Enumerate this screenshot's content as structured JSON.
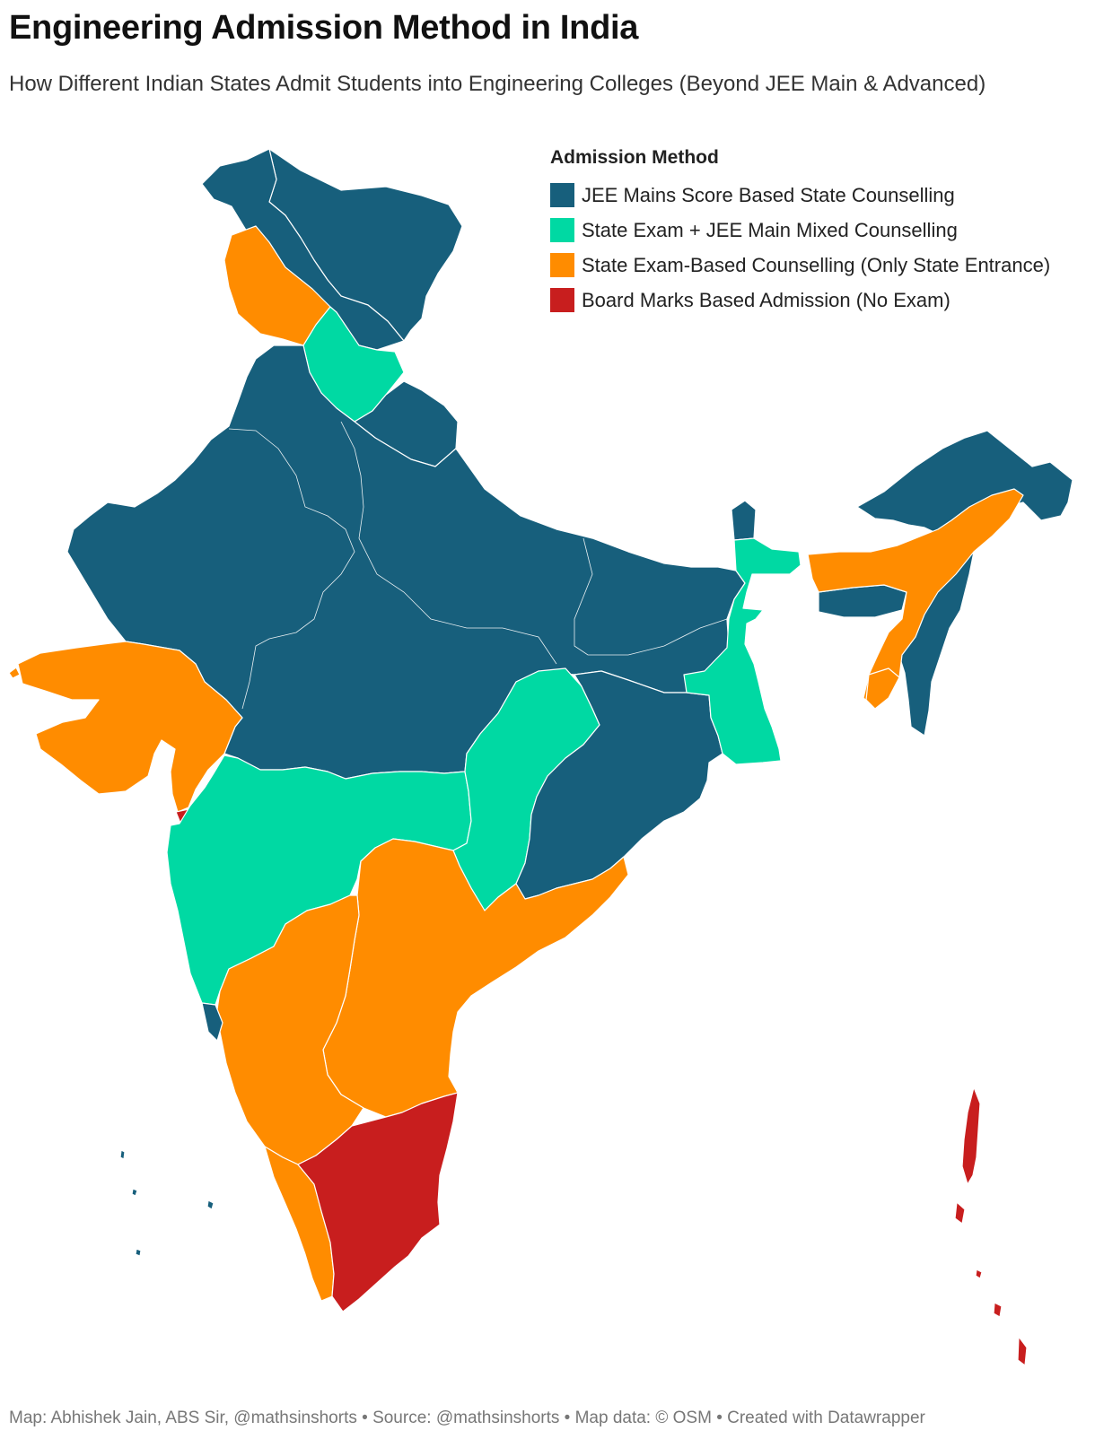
{
  "title": "Engineering Admission Method in India",
  "subtitle": "How Different Indian States Admit Students into Engineering Colleges (Beyond JEE Main & Advanced)",
  "legend": {
    "title": "Admission Method",
    "items": [
      {
        "label": "JEE Mains Score Based State Counselling",
        "color": "#175f7c"
      },
      {
        "label": "State Exam + JEE Main Mixed Counselling",
        "color": "#00d9a3"
      },
      {
        "label": "State Exam-Based Counselling (Only State Entrance)",
        "color": "#ff8c00"
      },
      {
        "label": "Board Marks Based Admission (No Exam)",
        "color": "#c81e1e"
      }
    ]
  },
  "map": {
    "border_color": "#ffffff",
    "colors": {
      "jee": "#175f7c",
      "mixed": "#00d9a3",
      "state": "#ff8c00",
      "board": "#c81e1e"
    }
  },
  "footer": "Map: Abhishek Jain, ABS Sir, @mathsinshorts • Source: @mathsinshorts • Map data: © OSM  • Created with Datawrapper"
}
